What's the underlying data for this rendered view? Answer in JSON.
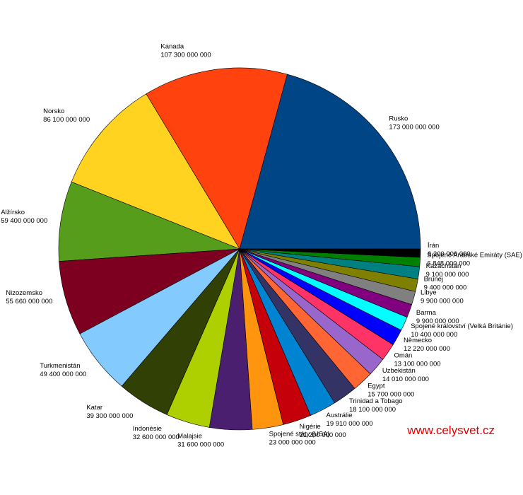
{
  "chart_data": {
    "type": "pie",
    "categories": [
      "Rusko",
      "Kanada",
      "Norsko",
      "Alžírsko",
      "Nizozemsko",
      "Turkmenistán",
      "Katar",
      "Indonésie",
      "Malajsie",
      "Spojené státy (USA)",
      "Nigérie",
      "Austrálie",
      "Trinidad a Tobago",
      "Egypt",
      "Uzbekistán",
      "Omán",
      "Německo",
      "Spojené království (Velká Británie)",
      "Barma",
      "Libye",
      "Brunej",
      "Kazachstán",
      "Spojené Arabské Emiráty (SAE)",
      "Írán"
    ],
    "values": [
      173000000000,
      107300000000,
      86100000000,
      59400000000,
      55660000000,
      49400000000,
      39300000000,
      32600000000,
      31600000000,
      23000000000,
      21200000000,
      19910000000,
      18100000000,
      15700000000,
      14010000000,
      13100000000,
      12220000000,
      10400000000,
      9900000000,
      9900000000,
      9400000000,
      9100000000,
      6848000000,
      6200000000
    ],
    "value_labels": [
      "173 000 000 000",
      "107 300 000 000",
      "86 100 000 000",
      "59 400 000 000",
      "55 660 000 000",
      "49 400 000 000",
      "39 300 000 000",
      "32 600 000 000",
      "31 600 000 000",
      "23 000 000 000",
      "21 200 000 000",
      "19 910 000 000",
      "18 100 000 000",
      "15 700 000 000",
      "14 010 000 000",
      "13 100 000 000",
      "12 220 000 000",
      "10 400 000 000",
      "9 900 000 000",
      "9 900 000 000",
      "9 400 000 000",
      "9 100 000 000",
      "6 848 000 000",
      "6 200 000 000"
    ],
    "colors": [
      "#004586",
      "#ff420e",
      "#ffd320",
      "#579d1c",
      "#7e0021",
      "#83caff",
      "#314004",
      "#aecf00",
      "#4b1f6f",
      "#ff950e",
      "#c5000b",
      "#0084d1",
      "#333366",
      "#ff6633",
      "#9966cc",
      "#ff3366",
      "#0000ff",
      "#00ffff",
      "#800080",
      "#808080",
      "#808000",
      "#008080",
      "#008000",
      "#000000"
    ],
    "watermark": "www.celysvet.cz"
  }
}
